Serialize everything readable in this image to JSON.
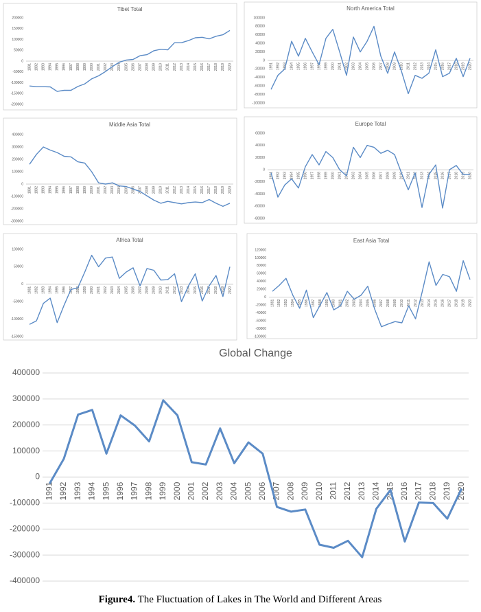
{
  "chart_data": [
    {
      "type": "line",
      "title": "Tibet Total",
      "color": "#5b8bc6",
      "grid": false,
      "categories": [
        "1991",
        "1992",
        "1993",
        "1994",
        "1995",
        "1996",
        "1997",
        "1998",
        "1999",
        "2000",
        "2001",
        "2002",
        "2003",
        "2004",
        "2005",
        "2006",
        "2007",
        "2008",
        "2009",
        "2010",
        "2011",
        "2012",
        "2013",
        "2014",
        "2015",
        "2016",
        "2017",
        "2018",
        "2019",
        "2020"
      ],
      "values": [
        -115000,
        -118000,
        -118000,
        -119000,
        -140000,
        -135000,
        -135000,
        -117000,
        -105000,
        -82000,
        -68000,
        -48000,
        -25000,
        -5000,
        5000,
        8000,
        25000,
        30000,
        48000,
        55000,
        52000,
        85000,
        85000,
        95000,
        108000,
        110000,
        103000,
        115000,
        122000,
        142000
      ],
      "ylim": [
        -200000,
        200000
      ],
      "yticks": [
        -200000,
        -150000,
        -100000,
        -50000,
        0,
        50000,
        100000,
        150000,
        200000
      ]
    },
    {
      "type": "line",
      "title": "North America Total",
      "color": "#5b8bc6",
      "grid": false,
      "categories": [
        "1991",
        "1992",
        "1993",
        "1994",
        "1995",
        "1996",
        "1997",
        "1998",
        "1999",
        "2000",
        "2001",
        "2002",
        "2003",
        "2004",
        "2005",
        "2006",
        "2007",
        "2008",
        "2009",
        "2010",
        "2011",
        "2012",
        "2013",
        "2014",
        "2015",
        "2016",
        "2017",
        "2018",
        "2019",
        "2020"
      ],
      "values": [
        -68000,
        -35000,
        -20000,
        45000,
        10000,
        52000,
        20000,
        -10000,
        52000,
        73000,
        20000,
        -35000,
        55000,
        20000,
        45000,
        80000,
        10000,
        -30000,
        20000,
        -25000,
        -78000,
        -35000,
        -42000,
        -30000,
        25000,
        -38000,
        -30000,
        5000,
        -38000,
        5000
      ],
      "ylim": [
        -100000,
        100000
      ],
      "yticks": [
        -100000,
        -80000,
        -60000,
        -40000,
        -20000,
        0,
        20000,
        40000,
        60000,
        80000,
        100000
      ]
    },
    {
      "type": "line",
      "title": "Middle Asia Total",
      "color": "#5b8bc6",
      "grid": false,
      "categories": [
        "1991",
        "1992",
        "1993",
        "1994",
        "1995",
        "1996",
        "1997",
        "1998",
        "1999",
        "2000",
        "2001",
        "2002",
        "2003",
        "2004",
        "2005",
        "2006",
        "2007",
        "2008",
        "2009",
        "2010",
        "2011",
        "2012",
        "2013",
        "2014",
        "2015",
        "2016",
        "2017",
        "2018",
        "2019",
        "2020"
      ],
      "values": [
        160000,
        240000,
        300000,
        275000,
        255000,
        225000,
        220000,
        180000,
        170000,
        100000,
        10000,
        0,
        10000,
        -15000,
        -20000,
        -40000,
        -60000,
        -95000,
        -130000,
        -155000,
        -140000,
        -150000,
        -160000,
        -150000,
        -145000,
        -150000,
        -125000,
        -155000,
        -180000,
        -155000
      ],
      "ylim": [
        -300000,
        400000
      ],
      "yticks": [
        -300000,
        -200000,
        -100000,
        0,
        100000,
        200000,
        300000,
        400000
      ]
    },
    {
      "type": "line",
      "title": "Europe Total",
      "color": "#5b8bc6",
      "grid": false,
      "categories": [
        "1991",
        "1992",
        "1993",
        "1994",
        "1995",
        "1996",
        "1997",
        "1998",
        "1999",
        "2000",
        "2001",
        "2002",
        "2003",
        "2004",
        "2005",
        "2006",
        "2007",
        "2008",
        "2009",
        "2010",
        "2011",
        "2012",
        "2013",
        "2014",
        "2015",
        "2016",
        "2017",
        "2018",
        "2019",
        "2020"
      ],
      "values": [
        -5000,
        -45000,
        -25000,
        -15000,
        -30000,
        5000,
        25000,
        8000,
        30000,
        20000,
        0,
        -10000,
        37000,
        20000,
        40000,
        37000,
        27000,
        32000,
        25000,
        -5000,
        -33000,
        -5000,
        -62000,
        -8000,
        8000,
        -63000,
        0,
        7000,
        -8000,
        -8000
      ],
      "ylim": [
        -80000,
        60000
      ],
      "yticks": [
        -80000,
        -60000,
        -40000,
        -20000,
        0,
        20000,
        40000,
        60000
      ]
    },
    {
      "type": "line",
      "title": "Africa Total",
      "color": "#5b8bc6",
      "grid": false,
      "categories": [
        "1991",
        "1992",
        "1993",
        "1994",
        "1995",
        "1996",
        "1997",
        "1998",
        "1999",
        "2000",
        "2001",
        "2002",
        "2003",
        "2004",
        "2005",
        "2006",
        "2007",
        "2008",
        "2009",
        "2010",
        "2011",
        "2012",
        "2013",
        "2014",
        "2015",
        "2016",
        "2017",
        "2018",
        "2019",
        "2020"
      ],
      "values": [
        -115000,
        -105000,
        -55000,
        -40000,
        -110000,
        -60000,
        -15000,
        -10000,
        35000,
        83000,
        50000,
        75000,
        78000,
        17000,
        35000,
        47000,
        -5000,
        45000,
        40000,
        12000,
        13000,
        30000,
        -50000,
        -5000,
        30000,
        -48000,
        -5000,
        25000,
        -35000,
        50000
      ],
      "ylim": [
        -150000,
        100000
      ],
      "yticks": [
        -150000,
        -100000,
        -50000,
        0,
        50000,
        100000
      ]
    },
    {
      "type": "line",
      "title": "East Asia Total",
      "color": "#5b8bc6",
      "grid": false,
      "categories": [
        "1991",
        "1992",
        "1993",
        "1994",
        "1995",
        "1996",
        "1997",
        "1998",
        "1999",
        "2000",
        "2001",
        "2002",
        "2003",
        "2004",
        "2005",
        "2006",
        "2007",
        "2008",
        "2009",
        "2010",
        "2011",
        "2012",
        "2013",
        "2014",
        "2015",
        "2016",
        "2017",
        "2018",
        "2019",
        "2020"
      ],
      "values": [
        15000,
        30000,
        48000,
        5000,
        -28000,
        18000,
        -52000,
        -20000,
        12000,
        -32000,
        -22000,
        15000,
        -5000,
        5000,
        28000,
        -30000,
        -75000,
        -68000,
        -62000,
        -65000,
        -22000,
        -55000,
        15000,
        90000,
        30000,
        58000,
        52000,
        15000,
        93000,
        45000
      ],
      "ylim": [
        -100000,
        120000
      ],
      "yticks": [
        -100000,
        -80000,
        -60000,
        -40000,
        -20000,
        0,
        20000,
        40000,
        60000,
        80000,
        100000,
        120000
      ]
    },
    {
      "type": "line",
      "title": "Global Change",
      "color": "#5b8bc6",
      "grid": true,
      "categories": [
        "1991",
        "1992",
        "1993",
        "1994",
        "1995",
        "1996",
        "1997",
        "1998",
        "1999",
        "2000",
        "2001",
        "2002",
        "2003",
        "2004",
        "2005",
        "2006",
        "2007",
        "2008",
        "2009",
        "2010",
        "2011",
        "2012",
        "2013",
        "2014",
        "2015",
        "2016",
        "2017",
        "2018",
        "2019",
        "2020"
      ],
      "values": [
        -25000,
        70000,
        240000,
        258000,
        90000,
        237000,
        198000,
        137000,
        295000,
        237000,
        57000,
        48000,
        187000,
        53000,
        133000,
        90000,
        -115000,
        -133000,
        -125000,
        -260000,
        -272000,
        -245000,
        -308000,
        -122000,
        -50000,
        -248000,
        -98000,
        -100000,
        -160000,
        -45000
      ],
      "ylim": [
        -400000,
        400000
      ],
      "yticks": [
        -400000,
        -300000,
        -200000,
        -100000,
        0,
        100000,
        200000,
        300000,
        400000
      ]
    }
  ],
  "caption": {
    "label": "Figure4.",
    "text": " The Fluctuation of Lakes in The World and Different Areas"
  }
}
